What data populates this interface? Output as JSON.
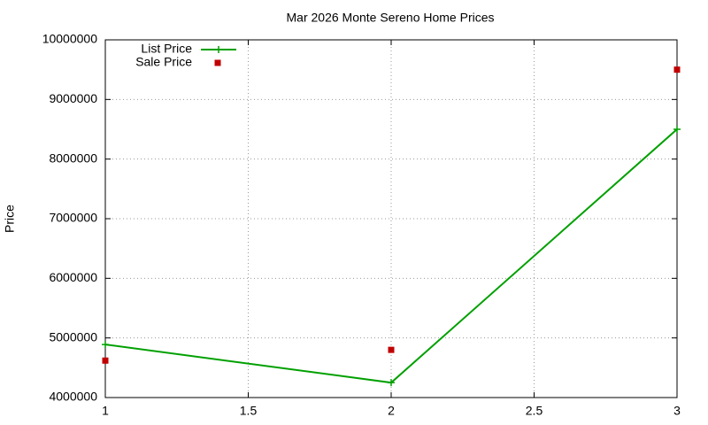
{
  "chart_data": {
    "type": "line",
    "title": "Mar 2026 Monte Sereno Home Prices",
    "y_label": "Price",
    "x": [
      1,
      2,
      3
    ],
    "series": [
      {
        "name": "List Price",
        "color": "#00a000",
        "style": "linespoints",
        "values": [
          4890000,
          4250000,
          8500000
        ]
      },
      {
        "name": "Sale Price",
        "color": "#c00000",
        "style": "points",
        "values": [
          4620000,
          4800000,
          9500000
        ]
      }
    ],
    "xlim": [
      1,
      3
    ],
    "xticks": [
      1,
      1.5,
      2,
      2.5,
      3
    ],
    "ylim": [
      4000000,
      10000000
    ],
    "yticks": [
      4000000,
      5000000,
      6000000,
      7000000,
      8000000,
      9000000,
      10000000
    ],
    "grid": true,
    "legend": "top-left"
  }
}
